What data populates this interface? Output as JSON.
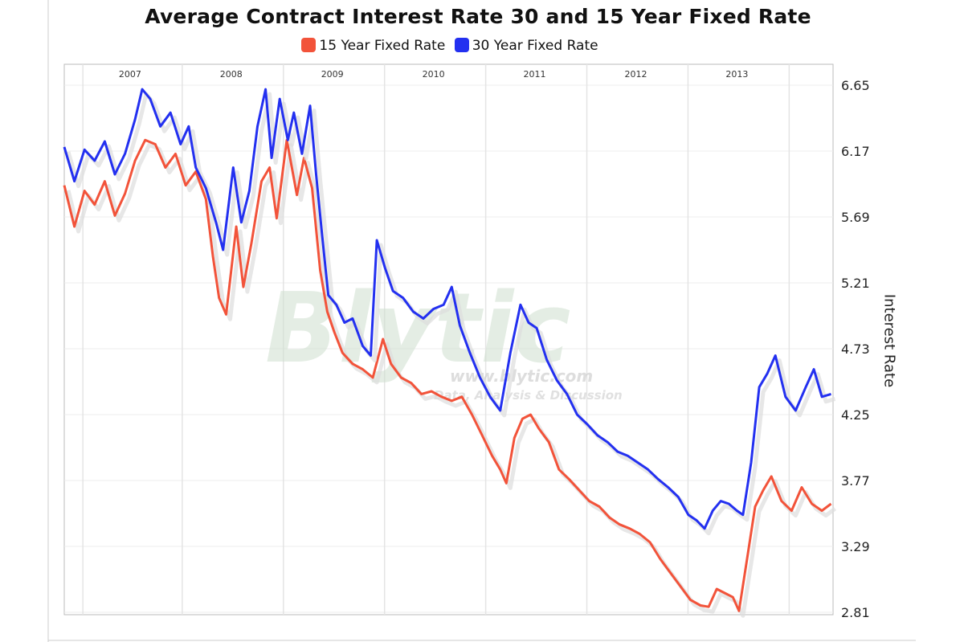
{
  "chart_data": {
    "type": "line",
    "title": "Average Contract Interest Rate 30 and 15 Year Fixed Rate",
    "ylabel": "Interest Rate",
    "xlabel": "",
    "legend_position": "top-center",
    "grid": true,
    "ylim": [
      2.81,
      6.65
    ],
    "y_ticks": [
      "6.65",
      "6.17",
      "5.69",
      "5.21",
      "4.73",
      "4.25",
      "3.77",
      "3.29",
      "2.81"
    ],
    "x_ticks": [
      {
        "label": "2007",
        "t": 2007.0
      },
      {
        "label": "2008",
        "t": 2008.0
      },
      {
        "label": "2009",
        "t": 2009.0
      },
      {
        "label": "2010",
        "t": 2010.0
      },
      {
        "label": "2011",
        "t": 2011.0
      },
      {
        "label": "2012",
        "t": 2012.0
      },
      {
        "label": "2013",
        "t": 2013.0
      }
    ],
    "x_range": [
      2006.35,
      2013.95
    ],
    "series": [
      {
        "name": "15 Year Fixed Rate",
        "color": "#f2533a",
        "points": [
          [
            2006.35,
            5.92
          ],
          [
            2006.45,
            5.62
          ],
          [
            2006.55,
            5.88
          ],
          [
            2006.65,
            5.78
          ],
          [
            2006.75,
            5.95
          ],
          [
            2006.85,
            5.7
          ],
          [
            2006.95,
            5.86
          ],
          [
            2007.05,
            6.1
          ],
          [
            2007.15,
            6.25
          ],
          [
            2007.25,
            6.22
          ],
          [
            2007.35,
            6.05
          ],
          [
            2007.45,
            6.15
          ],
          [
            2007.55,
            5.92
          ],
          [
            2007.65,
            6.02
          ],
          [
            2007.75,
            5.82
          ],
          [
            2007.82,
            5.4
          ],
          [
            2007.88,
            5.1
          ],
          [
            2007.95,
            4.98
          ],
          [
            2008.05,
            5.62
          ],
          [
            2008.12,
            5.18
          ],
          [
            2008.2,
            5.5
          ],
          [
            2008.3,
            5.95
          ],
          [
            2008.38,
            6.05
          ],
          [
            2008.45,
            5.68
          ],
          [
            2008.55,
            6.25
          ],
          [
            2008.65,
            5.85
          ],
          [
            2008.72,
            6.12
          ],
          [
            2008.8,
            5.9
          ],
          [
            2008.88,
            5.3
          ],
          [
            2008.95,
            5.0
          ],
          [
            2009.02,
            4.85
          ],
          [
            2009.1,
            4.7
          ],
          [
            2009.2,
            4.62
          ],
          [
            2009.3,
            4.58
          ],
          [
            2009.4,
            4.52
          ],
          [
            2009.5,
            4.8
          ],
          [
            2009.58,
            4.62
          ],
          [
            2009.68,
            4.52
          ],
          [
            2009.78,
            4.48
          ],
          [
            2009.88,
            4.4
          ],
          [
            2009.98,
            4.42
          ],
          [
            2010.08,
            4.38
          ],
          [
            2010.18,
            4.35
          ],
          [
            2010.28,
            4.38
          ],
          [
            2010.38,
            4.25
          ],
          [
            2010.48,
            4.1
          ],
          [
            2010.58,
            3.95
          ],
          [
            2010.66,
            3.85
          ],
          [
            2010.72,
            3.75
          ],
          [
            2010.8,
            4.08
          ],
          [
            2010.88,
            4.22
          ],
          [
            2010.96,
            4.25
          ],
          [
            2011.04,
            4.15
          ],
          [
            2011.14,
            4.05
          ],
          [
            2011.24,
            3.85
          ],
          [
            2011.34,
            3.78
          ],
          [
            2011.44,
            3.7
          ],
          [
            2011.54,
            3.62
          ],
          [
            2011.64,
            3.58
          ],
          [
            2011.74,
            3.5
          ],
          [
            2011.84,
            3.45
          ],
          [
            2011.94,
            3.42
          ],
          [
            2012.04,
            3.38
          ],
          [
            2012.14,
            3.32
          ],
          [
            2012.24,
            3.2
          ],
          [
            2012.34,
            3.1
          ],
          [
            2012.44,
            3.0
          ],
          [
            2012.54,
            2.9
          ],
          [
            2012.64,
            2.86
          ],
          [
            2012.72,
            2.85
          ],
          [
            2012.8,
            2.98
          ],
          [
            2012.88,
            2.95
          ],
          [
            2012.96,
            2.92
          ],
          [
            2013.02,
            2.82
          ],
          [
            2013.1,
            3.2
          ],
          [
            2013.18,
            3.58
          ],
          [
            2013.26,
            3.7
          ],
          [
            2013.34,
            3.8
          ],
          [
            2013.44,
            3.62
          ],
          [
            2013.54,
            3.55
          ],
          [
            2013.64,
            3.72
          ],
          [
            2013.74,
            3.6
          ],
          [
            2013.84,
            3.55
          ],
          [
            2013.93,
            3.6
          ]
        ]
      },
      {
        "name": "30 Year Fixed Rate",
        "color": "#2330f0",
        "points": [
          [
            2006.35,
            6.2
          ],
          [
            2006.45,
            5.95
          ],
          [
            2006.55,
            6.18
          ],
          [
            2006.65,
            6.1
          ],
          [
            2006.75,
            6.24
          ],
          [
            2006.85,
            6.0
          ],
          [
            2006.95,
            6.15
          ],
          [
            2007.05,
            6.4
          ],
          [
            2007.12,
            6.62
          ],
          [
            2007.2,
            6.55
          ],
          [
            2007.3,
            6.35
          ],
          [
            2007.4,
            6.45
          ],
          [
            2007.5,
            6.22
          ],
          [
            2007.58,
            6.35
          ],
          [
            2007.65,
            6.05
          ],
          [
            2007.75,
            5.9
          ],
          [
            2007.85,
            5.65
          ],
          [
            2007.92,
            5.45
          ],
          [
            2008.02,
            6.05
          ],
          [
            2008.1,
            5.65
          ],
          [
            2008.18,
            5.88
          ],
          [
            2008.26,
            6.35
          ],
          [
            2008.34,
            6.62
          ],
          [
            2008.4,
            6.12
          ],
          [
            2008.48,
            6.55
          ],
          [
            2008.56,
            6.25
          ],
          [
            2008.62,
            6.45
          ],
          [
            2008.7,
            6.15
          ],
          [
            2008.78,
            6.5
          ],
          [
            2008.84,
            6.0
          ],
          [
            2008.9,
            5.55
          ],
          [
            2008.96,
            5.12
          ],
          [
            2009.04,
            5.05
          ],
          [
            2009.12,
            4.92
          ],
          [
            2009.2,
            4.95
          ],
          [
            2009.3,
            4.75
          ],
          [
            2009.38,
            4.68
          ],
          [
            2009.44,
            5.52
          ],
          [
            2009.52,
            5.32
          ],
          [
            2009.6,
            5.15
          ],
          [
            2009.7,
            5.1
          ],
          [
            2009.8,
            5.0
          ],
          [
            2009.9,
            4.95
          ],
          [
            2010.0,
            5.02
          ],
          [
            2010.1,
            5.05
          ],
          [
            2010.18,
            5.18
          ],
          [
            2010.26,
            4.9
          ],
          [
            2010.36,
            4.7
          ],
          [
            2010.46,
            4.52
          ],
          [
            2010.56,
            4.38
          ],
          [
            2010.66,
            4.28
          ],
          [
            2010.76,
            4.7
          ],
          [
            2010.86,
            5.05
          ],
          [
            2010.94,
            4.92
          ],
          [
            2011.02,
            4.88
          ],
          [
            2011.12,
            4.65
          ],
          [
            2011.22,
            4.5
          ],
          [
            2011.32,
            4.4
          ],
          [
            2011.42,
            4.25
          ],
          [
            2011.52,
            4.18
          ],
          [
            2011.62,
            4.1
          ],
          [
            2011.72,
            4.05
          ],
          [
            2011.82,
            3.98
          ],
          [
            2011.92,
            3.95
          ],
          [
            2012.02,
            3.9
          ],
          [
            2012.12,
            3.85
          ],
          [
            2012.22,
            3.78
          ],
          [
            2012.32,
            3.72
          ],
          [
            2012.42,
            3.65
          ],
          [
            2012.52,
            3.52
          ],
          [
            2012.6,
            3.48
          ],
          [
            2012.68,
            3.42
          ],
          [
            2012.76,
            3.55
          ],
          [
            2012.84,
            3.62
          ],
          [
            2012.92,
            3.6
          ],
          [
            2013.0,
            3.55
          ],
          [
            2013.06,
            3.52
          ],
          [
            2013.14,
            3.9
          ],
          [
            2013.22,
            4.45
          ],
          [
            2013.3,
            4.55
          ],
          [
            2013.38,
            4.68
          ],
          [
            2013.48,
            4.38
          ],
          [
            2013.58,
            4.28
          ],
          [
            2013.68,
            4.45
          ],
          [
            2013.76,
            4.58
          ],
          [
            2013.84,
            4.38
          ],
          [
            2013.93,
            4.4
          ]
        ]
      }
    ]
  },
  "watermark": {
    "main": "Blytic",
    "url": "www.blytic.com",
    "tagline": "Data, Analysis & Discussion"
  }
}
